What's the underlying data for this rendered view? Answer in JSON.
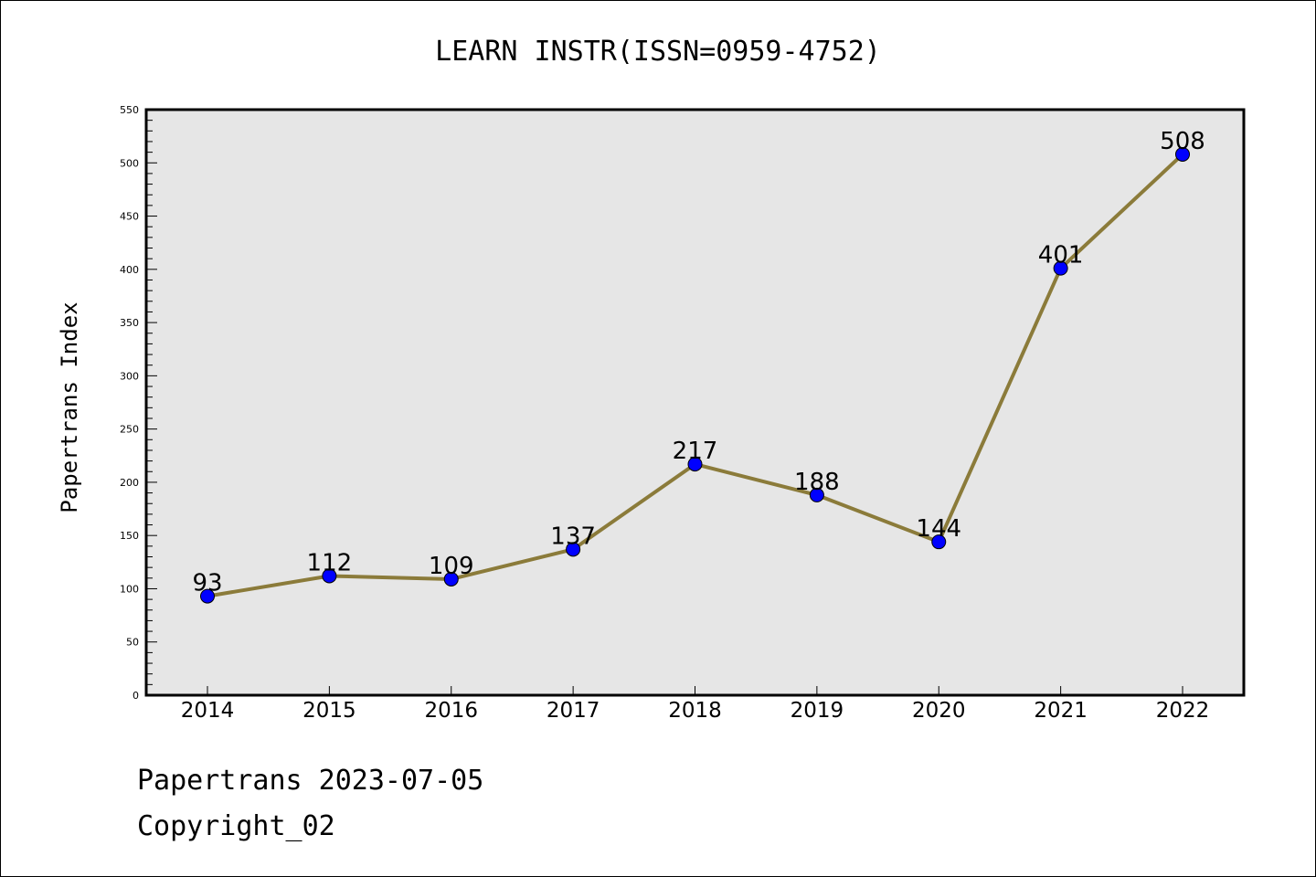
{
  "chart_data": {
    "type": "line",
    "title": "LEARN INSTR(ISSN=0959-4752)",
    "ylabel": "Papertrans Index",
    "xlabel": "",
    "categories": [
      "2014",
      "2015",
      "2016",
      "2017",
      "2018",
      "2019",
      "2020",
      "2021",
      "2022"
    ],
    "series": [
      {
        "values": [
          93,
          112,
          109,
          137,
          217,
          188,
          144,
          401,
          508
        ]
      }
    ],
    "ylim": [
      0,
      550
    ],
    "yticks": [
      0,
      50,
      100,
      150,
      200,
      250,
      300,
      350,
      400,
      450,
      500,
      550
    ],
    "grid": false,
    "legend": "none",
    "colors": {
      "line": "#8B7B3A",
      "marker": "#0000FF",
      "plot_background": "#E6E6E6"
    }
  },
  "footer": {
    "line1": "Papertrans 2023-07-05",
    "line2": "Copyright_02"
  }
}
